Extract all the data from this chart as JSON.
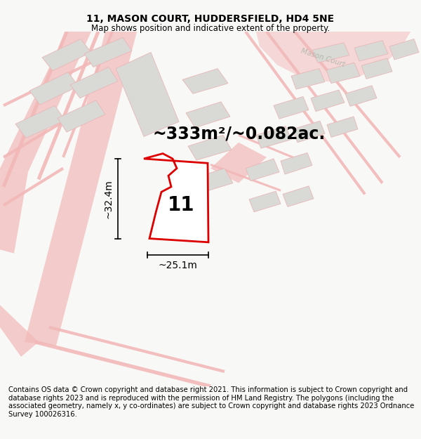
{
  "title": "11, MASON COURT, HUDDERSFIELD, HD4 5NE",
  "subtitle": "Map shows position and indicative extent of the property.",
  "area_label": "~333m²/~0.082ac.",
  "number_label": "11",
  "width_label": "~25.1m",
  "height_label": "~32.4m",
  "mason_court_label": "Mason Court",
  "footer_text": "Contains OS data © Crown copyright and database right 2021. This information is subject to Crown copyright and database rights 2023 and is reproduced with the permission of HM Land Registry. The polygons (including the associated geometry, namely x, y co-ordinates) are subject to Crown copyright and database rights 2023 Ordnance Survey 100026316.",
  "bg_color": "#f8f8f6",
  "map_bg": "#f2f1ef",
  "plot_outline": "#dd0000",
  "road_color": "#f2b8b8",
  "road_fill": "#f2b8b8",
  "building_fill": "#d9d9d5",
  "building_edge": "#e8b8b8",
  "title_fontsize": 10,
  "subtitle_fontsize": 8.5,
  "area_fontsize": 17,
  "number_fontsize": 20,
  "dim_fontsize": 10,
  "footer_fontsize": 7.2
}
